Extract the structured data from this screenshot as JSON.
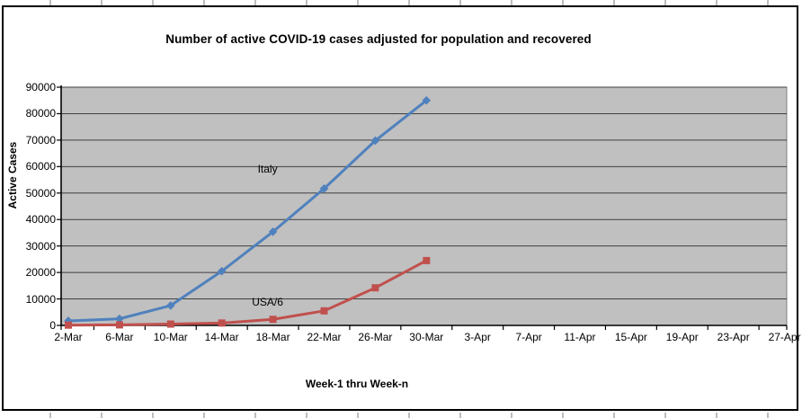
{
  "page": {
    "kind": "excel-chart-sheet"
  },
  "chart_data": {
    "type": "line",
    "title": "Number of active COVID-19 cases adjusted for population and recovered",
    "xlabel": "Week-1 thru Week-n",
    "ylabel": "Active Cases",
    "categories": [
      "2-Mar",
      "6-Mar",
      "10-Mar",
      "14-Mar",
      "18-Mar",
      "22-Mar",
      "26-Mar",
      "30-Mar",
      "3-Apr",
      "7-Apr",
      "11-Apr",
      "15-Apr",
      "19-Apr",
      "23-Apr",
      "27-Apr"
    ],
    "series": [
      {
        "name": "Italy",
        "color": "#4F81BD",
        "marker": "diamond",
        "values": [
          1700,
          2500,
          7500,
          20500,
          35400,
          51700,
          69800,
          85000
        ]
      },
      {
        "name": "USA/6",
        "color": "#C0504D",
        "marker": "square",
        "values": [
          100,
          200,
          500,
          900,
          2300,
          5500,
          14200,
          24500
        ]
      }
    ],
    "ylim": [
      0,
      90000
    ],
    "ytick_step": 10000,
    "grid": "horizontal-black",
    "legend_position": "none",
    "plot_bg": "#C0C0C0",
    "annotations": [
      {
        "label": "Italy",
        "category": "18-Mar",
        "value": 60000
      },
      {
        "label": "USA/6",
        "category": "18-Mar",
        "value": 10000
      }
    ]
  }
}
